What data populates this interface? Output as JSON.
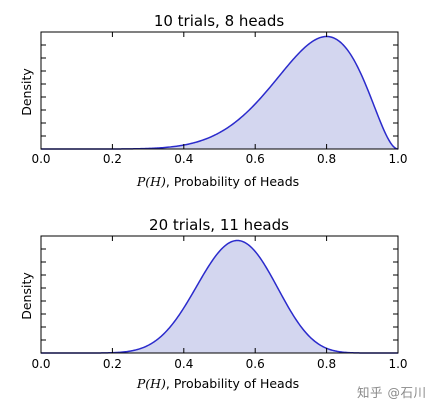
{
  "chart_data": [
    {
      "type": "area",
      "title": "10 trials, 8 heads",
      "xlabel_math": "P(H)",
      "xlabel_text": ", Probability of Heads",
      "ylabel": "Density",
      "xlim": [
        0.0,
        1.0
      ],
      "xticks": [
        "0.0",
        "0.2",
        "0.4",
        "0.6",
        "0.8",
        "1.0"
      ],
      "distribution": "beta",
      "alpha": 9,
      "beta": 3,
      "line_color": "#2b2bcc",
      "fill_color": "#d3d6ef",
      "grid": false,
      "legend": "none"
    },
    {
      "type": "area",
      "title": "20 trials, 11 heads",
      "xlabel_math": "P(H)",
      "xlabel_text": ", Probability of Heads",
      "ylabel": "Density",
      "xlim": [
        0.0,
        1.0
      ],
      "xticks": [
        "0.0",
        "0.2",
        "0.4",
        "0.6",
        "0.8",
        "1.0"
      ],
      "distribution": "beta",
      "alpha": 12,
      "beta": 10,
      "line_color": "#2b2bcc",
      "fill_color": "#d3d6ef",
      "grid": false,
      "legend": "none"
    }
  ],
  "watermark": "知乎 @石川"
}
